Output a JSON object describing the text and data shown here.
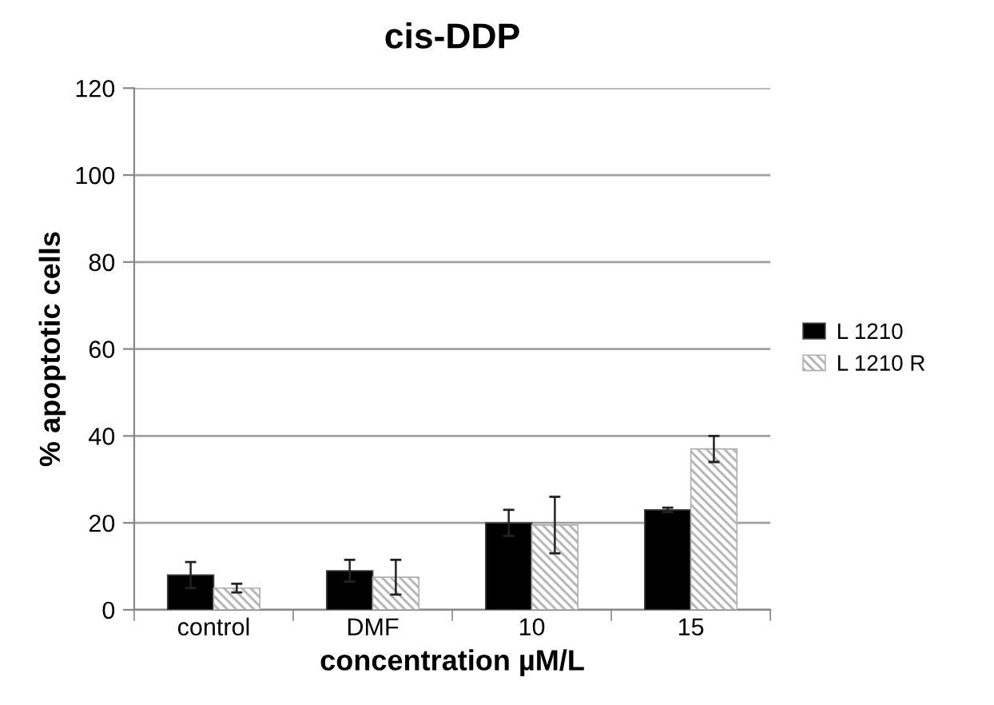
{
  "chart_data": {
    "type": "bar",
    "title": "cis-DDP",
    "xlabel": "concentration µM/L",
    "ylabel": "% apoptotic cells",
    "categories": [
      "control",
      "DMF",
      "10",
      "15"
    ],
    "series": [
      {
        "name": "L 1210",
        "color": "#000000",
        "values": [
          8,
          9,
          20,
          23
        ],
        "errors": [
          3,
          2.5,
          3,
          0.5
        ]
      },
      {
        "name": "L 1210 R",
        "color": "#b0b0b0",
        "values": [
          5,
          7.5,
          19.5,
          37
        ],
        "errors": [
          1,
          4,
          6.5,
          3
        ]
      }
    ],
    "ylim": [
      0,
      120
    ],
    "yticks": [
      0,
      20,
      40,
      60,
      80,
      100,
      120
    ],
    "grid": "y",
    "legend": "right"
  }
}
